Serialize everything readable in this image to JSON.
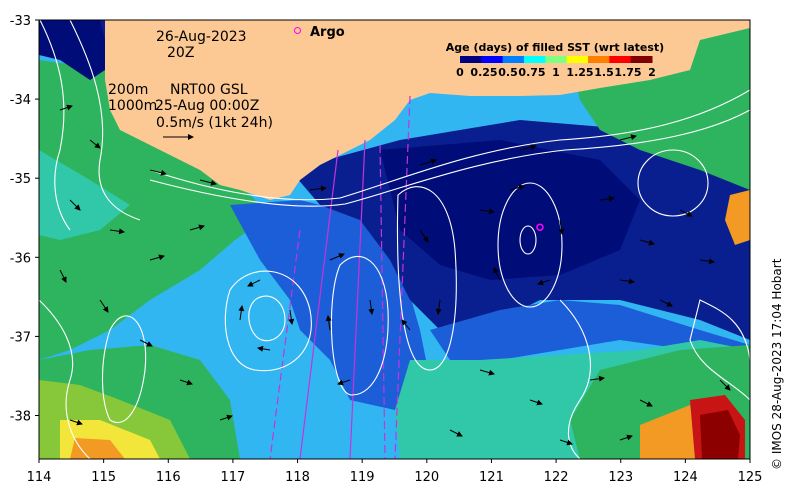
{
  "header": {
    "date": "26-Aug-2023",
    "time": "20Z",
    "depth_label_1": "200m",
    "depth_label_2": "1000m",
    "model_label": "NRT00 GSL",
    "model_time": "25-Aug 00:00Z",
    "velocity_scale": "0.5m/s (1kt 24h)",
    "argo_label": "Argo"
  },
  "colorbar": {
    "title": "Age (days) of filled SST (wrt latest)",
    "ticks": [
      "0",
      "0.25",
      "0.5",
      "0.75",
      "1",
      "1.25",
      "1.5",
      "1.75",
      "2"
    ],
    "colors": [
      "#00007f",
      "#0000ff",
      "#007fff",
      "#00ffff",
      "#7fff7f",
      "#ffff00",
      "#ff7f00",
      "#ff0000",
      "#7f0000"
    ]
  },
  "axes": {
    "x_ticks": [
      "114",
      "115",
      "116",
      "117",
      "118",
      "119",
      "120",
      "121",
      "122",
      "123",
      "124",
      "125"
    ],
    "y_ticks": [
      "-33",
      "-34",
      "-35",
      "-36",
      "-37",
      "-38"
    ],
    "lon_range": [
      114,
      125
    ],
    "lat_range": [
      -38.55,
      -33
    ]
  },
  "argo_float": {
    "lon": 121.75,
    "lat": -35.62,
    "color": "#ff00ff"
  },
  "credit": "© IMOS 28-Aug-2023 17:04 Hobart",
  "palette": {
    "land": "#fcc894",
    "deep_navy": "#000c78",
    "navy": "#0a1f8f",
    "blue": "#1c5ed8",
    "sky": "#31b6f2",
    "teal": "#30c8a8",
    "green": "#2eb45e",
    "lime": "#86c83a",
    "yellow": "#f2e63a",
    "orange": "#f29a24",
    "red": "#c81414",
    "dark_red": "#8c0000",
    "contour": "#ffffff",
    "track": "#c832dc"
  }
}
